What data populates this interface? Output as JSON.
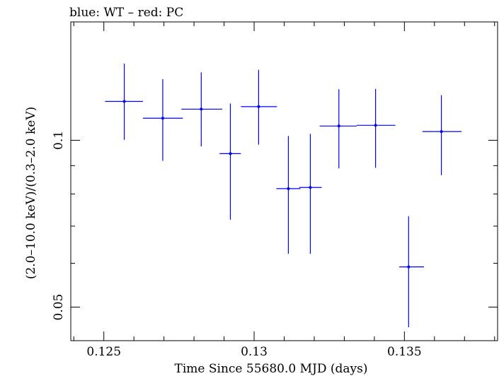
{
  "chart_data": {
    "type": "scatter",
    "title": "blue: WT – red: PC",
    "xlabel": "Time Since 55680.0 MJD (days)",
    "ylabel": "(2.0–10.0 keV)/(0.3–2.0 keV)",
    "xlim": [
      0.1239,
      0.1381
    ],
    "ylim": [
      0.0435,
      0.1635
    ],
    "yscale": "log",
    "x_ticks": [
      {
        "value": 0.125,
        "label": "0.125"
      },
      {
        "value": 0.13,
        "label": "0.13"
      },
      {
        "value": 0.135,
        "label": "0.135"
      }
    ],
    "y_ticks": [
      {
        "value": 0.05,
        "label": "0.05"
      },
      {
        "value": 0.1,
        "label": "0.1"
      }
    ],
    "grid": false,
    "legend": "none",
    "series": [
      {
        "color": "#0000ff",
        "points": [
          {
            "x": 0.12568,
            "y": 0.1175,
            "xlo": 0.12504,
            "xhi": 0.1263,
            "ylo": 0.1002,
            "yhi": 0.1375
          },
          {
            "x": 0.12696,
            "y": 0.1096,
            "xlo": 0.1263,
            "xhi": 0.12763,
            "ylo": 0.0918,
            "yhi": 0.1289
          },
          {
            "x": 0.12824,
            "y": 0.1138,
            "xlo": 0.12758,
            "xhi": 0.12894,
            "ylo": 0.0975,
            "yhi": 0.1326
          },
          {
            "x": 0.12921,
            "y": 0.0946,
            "xlo": 0.12885,
            "xhi": 0.12956,
            "ylo": 0.0719,
            "yhi": 0.1165
          },
          {
            "x": 0.13015,
            "y": 0.115,
            "xlo": 0.12956,
            "xhi": 0.13076,
            "ylo": 0.0982,
            "yhi": 0.134
          },
          {
            "x": 0.13114,
            "y": 0.0818,
            "xlo": 0.13074,
            "xhi": 0.13154,
            "ylo": 0.0624,
            "yhi": 0.1018
          },
          {
            "x": 0.13187,
            "y": 0.0822,
            "xlo": 0.1315,
            "xhi": 0.13225,
            "ylo": 0.0624,
            "yhi": 0.1027
          },
          {
            "x": 0.13282,
            "y": 0.1061,
            "xlo": 0.13218,
            "xhi": 0.13341,
            "ylo": 0.089,
            "yhi": 0.1236
          },
          {
            "x": 0.13404,
            "y": 0.1064,
            "xlo": 0.13341,
            "xhi": 0.1347,
            "ylo": 0.0892,
            "yhi": 0.1238
          },
          {
            "x": 0.13514,
            "y": 0.0591,
            "xlo": 0.13483,
            "xhi": 0.13565,
            "ylo": 0.046,
            "yhi": 0.0729
          },
          {
            "x": 0.13623,
            "y": 0.1037,
            "xlo": 0.1356,
            "xhi": 0.1369,
            "ylo": 0.0865,
            "yhi": 0.1206
          }
        ]
      }
    ]
  }
}
